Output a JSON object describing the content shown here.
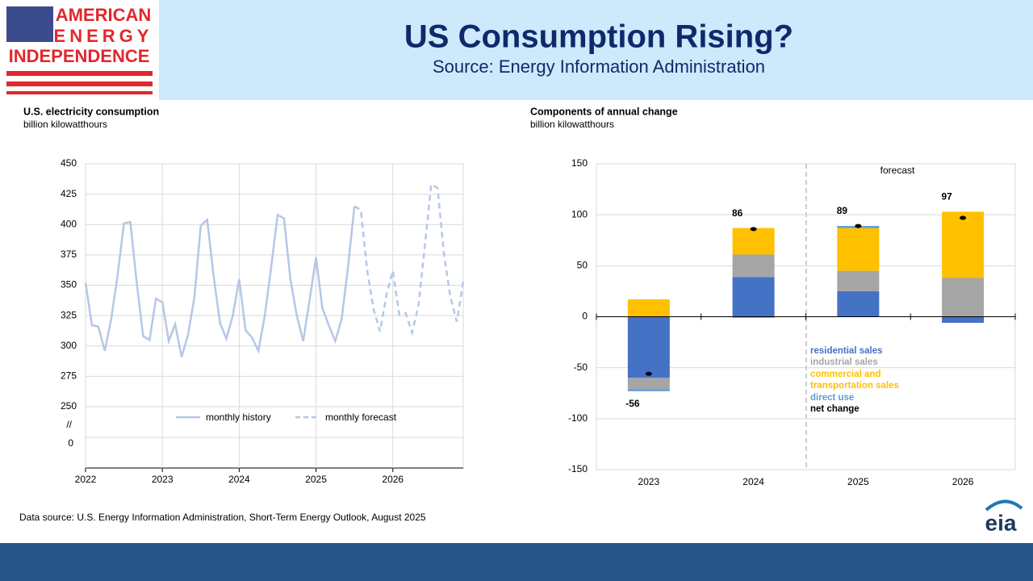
{
  "header": {
    "logo_lines": [
      "AMERICAN",
      "ENERGY",
      "INDEPENDENCE"
    ],
    "title": "US Consumption Rising?",
    "subtitle": "Source: Energy Information Administration"
  },
  "chart_data": [
    {
      "type": "line",
      "title": "U.S. electricity consumption",
      "subtitle": "billion kilowatthours",
      "categories": [
        "2022",
        null,
        null,
        null,
        null,
        null,
        null,
        null,
        null,
        null,
        null,
        null,
        "2023",
        null,
        null,
        null,
        null,
        null,
        null,
        null,
        null,
        null,
        null,
        null,
        "2024",
        null,
        null,
        null,
        null,
        null,
        null,
        null,
        null,
        null,
        null,
        null,
        "2025",
        null,
        null,
        null,
        null,
        null,
        null,
        null,
        null,
        null,
        null,
        null,
        "2026",
        null,
        null,
        null,
        null,
        null,
        null,
        null,
        null,
        null,
        null,
        null
      ],
      "series": [
        {
          "name": "monthly history",
          "color": "#b4c7e7",
          "dash": false,
          "values": [
            352,
            317,
            316,
            296,
            322,
            358,
            401,
            402,
            352,
            308,
            305,
            339,
            336,
            304,
            318,
            291,
            309,
            340,
            399,
            404,
            358,
            319,
            306,
            325,
            355,
            313,
            307,
            296,
            325,
            365,
            408,
            405,
            355,
            325,
            304,
            338,
            373,
            331,
            317,
            304,
            322,
            365,
            415,
            null,
            null,
            null,
            null,
            null,
            null,
            null,
            null,
            null,
            null,
            null,
            null,
            null,
            null,
            null,
            null,
            null
          ]
        },
        {
          "name": "monthly forecast",
          "color": "#b4c7e7",
          "dash": true,
          "values": [
            null,
            null,
            null,
            null,
            null,
            null,
            null,
            null,
            null,
            null,
            null,
            null,
            null,
            null,
            null,
            null,
            null,
            null,
            null,
            null,
            null,
            null,
            null,
            null,
            null,
            null,
            null,
            null,
            null,
            null,
            null,
            null,
            null,
            null,
            null,
            null,
            null,
            null,
            null,
            null,
            null,
            null,
            415,
            412,
            362,
            330,
            312,
            342,
            362,
            326,
            327,
            311,
            333,
            382,
            433,
            430,
            375,
            340,
            320,
            353
          ]
        }
      ],
      "ylim": [
        250,
        450
      ],
      "yticks": [
        250,
        275,
        300,
        325,
        350,
        375,
        400,
        425,
        450
      ],
      "yticks_below_break": [
        0
      ],
      "axis_break_mark": "//",
      "grid": true,
      "legend": "bottom"
    },
    {
      "type": "stacked_bar",
      "title": "Components of annual change",
      "subtitle": "billion kilowatthours",
      "categories": [
        "2023",
        "2024",
        "2025",
        "2026"
      ],
      "series": [
        {
          "name": "residential sales",
          "color": "#4472c4",
          "values": [
            -60,
            39,
            25,
            -6
          ]
        },
        {
          "name": "industrial sales",
          "color": "#a5a5a5",
          "values": [
            -11,
            22,
            20,
            38
          ]
        },
        {
          "name": "commercial and transportation sales",
          "color": "#ffc000",
          "values": [
            17,
            26,
            42,
            65
          ]
        },
        {
          "name": "direct use",
          "color": "#5b9bd5",
          "values": [
            -2,
            -1,
            2,
            0
          ]
        }
      ],
      "net": {
        "name": "net change",
        "color": "#000000",
        "values": [
          -56,
          86,
          89,
          97
        ]
      },
      "annotation": "forecast",
      "ylim": [
        -150,
        150
      ],
      "yticks": [
        -150,
        -100,
        -50,
        0,
        50,
        100,
        150
      ],
      "grid": true
    }
  ],
  "footer": {
    "source": "Data source: U.S. Energy Information Administration, Short-Term Energy Outlook, August 2025",
    "logo": "eia"
  }
}
